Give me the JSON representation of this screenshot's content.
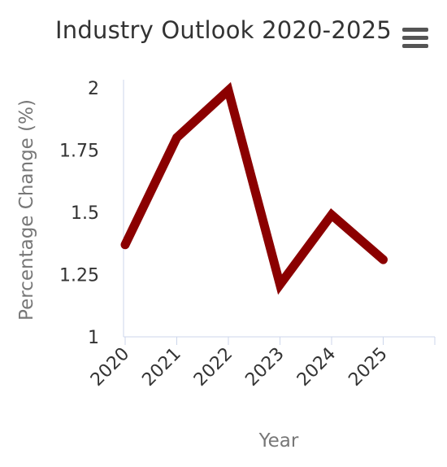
{
  "chart_data": {
    "type": "line",
    "title": "Industry Outlook 2020-2025",
    "xlabel": "Year",
    "ylabel": "Percentage Change (%)",
    "categories": [
      "2020",
      "2021",
      "2022",
      "2023",
      "2024",
      "2025"
    ],
    "series": [
      {
        "values": [
          1.37,
          1.8,
          1.99,
          1.21,
          1.49,
          1.31
        ],
        "color": "#8b0000"
      }
    ],
    "ylim": [
      1,
      2
    ],
    "yticks": [
      "1",
      "1.25",
      "1.5",
      "1.75",
      "2"
    ],
    "grid": false,
    "legend": "none"
  },
  "menu": {
    "icon": "hamburger-menu-icon"
  }
}
